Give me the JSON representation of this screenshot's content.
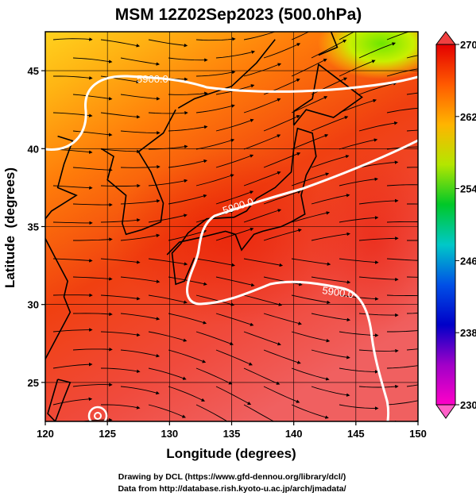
{
  "title": "MSM 12Z02Sep2023 (500.0hPa)",
  "xlabel": "Longitude (degrees)",
  "ylabel": "Latitude  (degrees)",
  "credit_line1": "Drawing by DCL (https://www.gfd-dennou.org/library/dcl/)",
  "credit_line2": "Data from http://database.rish.kyoto-u.ac.jp/arch/jmadata/",
  "map": {
    "lon_range": [
      120,
      150
    ],
    "lat_range": [
      22.5,
      47.5
    ],
    "lon_ticks": [
      "120",
      "125",
      "130",
      "135",
      "140",
      "145",
      "150"
    ],
    "lat_ticks": [
      "25",
      "30",
      "35",
      "40",
      "45"
    ],
    "contour_labels": [
      "5900.0",
      "5900.0",
      "5900.0"
    ]
  },
  "colorbar": {
    "tick_labels": [
      "270",
      "262",
      "254",
      "246",
      "238",
      "230"
    ],
    "stops": [
      "#e40000",
      "#ff5a00",
      "#ffb400",
      "#b4e600",
      "#00c828",
      "#00c8c8",
      "#0050e6",
      "#0000c8",
      "#a000c8",
      "#ff00c8"
    ]
  }
}
